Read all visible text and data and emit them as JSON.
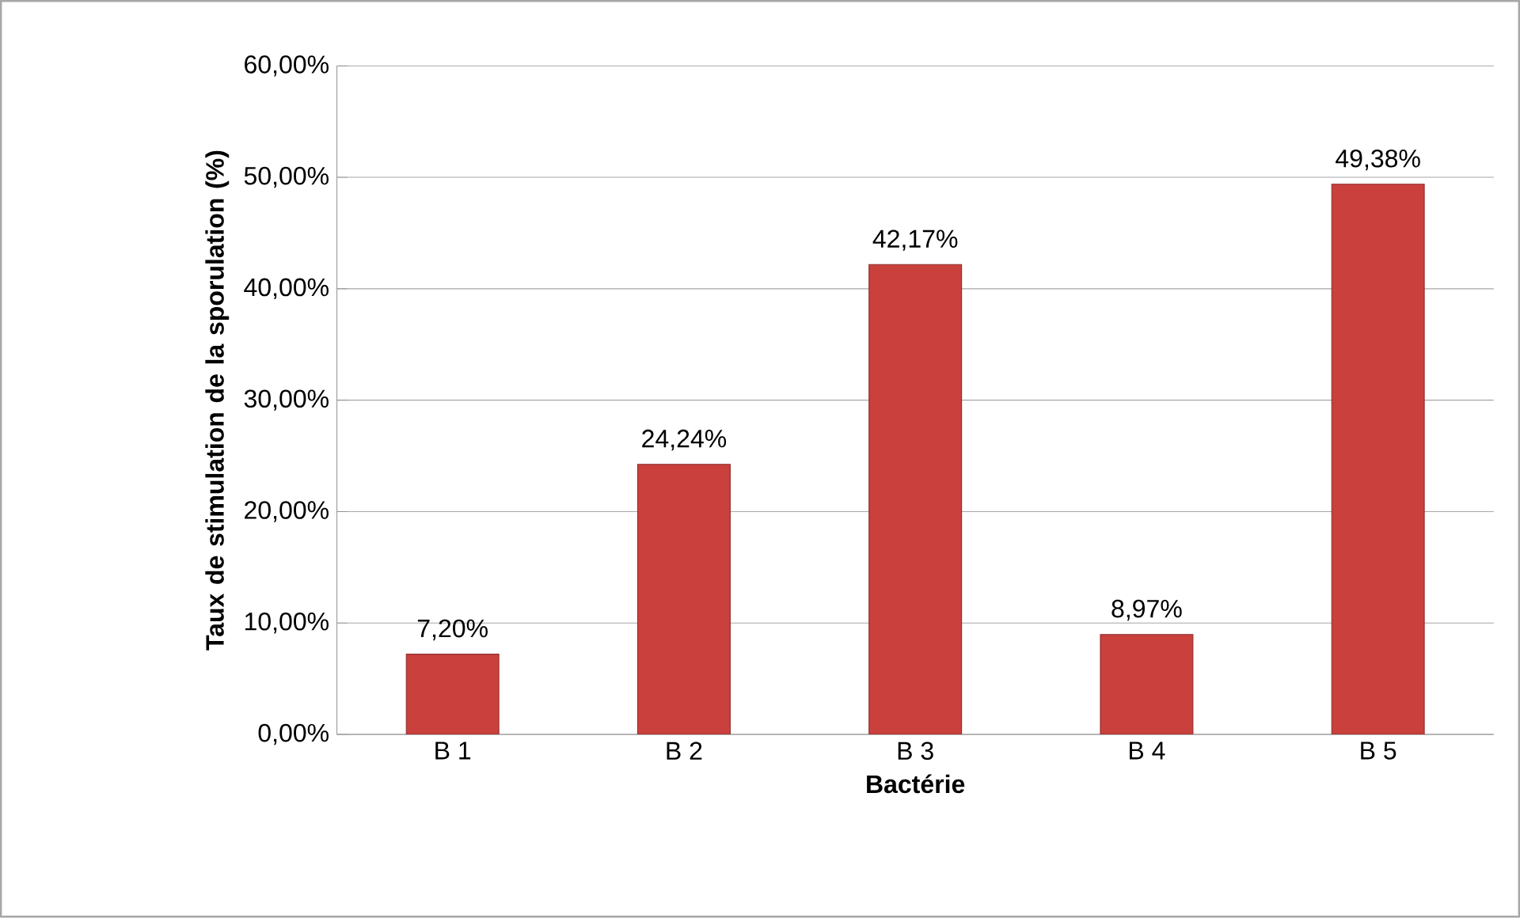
{
  "chart_data": {
    "type": "bar",
    "xlabel": "Bactérie",
    "ylabel": "Taux de stimulation de la sporulation (%)",
    "categories": [
      "B 1",
      "B 2",
      "B 3",
      "B 4",
      "B 5"
    ],
    "values": [
      7.2,
      24.24,
      42.17,
      8.97,
      49.38
    ],
    "value_labels": [
      "7,20%",
      "24,24%",
      "42,17%",
      "8,97%",
      "49,38%"
    ],
    "color": "#c9403d",
    "ylim": [
      0,
      60
    ],
    "yticks": [
      {
        "value": 0,
        "label": "0,00%"
      },
      {
        "value": 10,
        "label": "10,00%"
      },
      {
        "value": 20,
        "label": "20,00%"
      },
      {
        "value": 30,
        "label": "30,00%"
      },
      {
        "value": 40,
        "label": "40,00%"
      },
      {
        "value": 50,
        "label": "50,00%"
      },
      {
        "value": 60,
        "label": "60,00%"
      }
    ],
    "grid": "y"
  }
}
